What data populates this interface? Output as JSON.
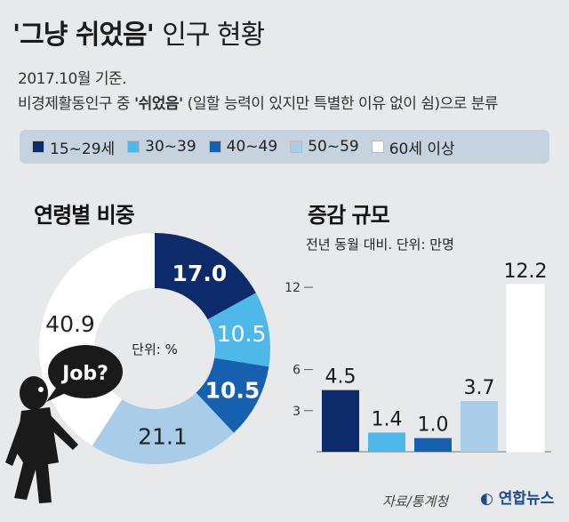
{
  "title": {
    "quoted": "'그냥 쉬었음'",
    "rest": "인구 현황"
  },
  "subtitle_line1": "2017.10월 기준.",
  "subtitle_line2_pre": "비경제활동인구 중 ",
  "subtitle_line2_bold": "'쉬었음'",
  "subtitle_line2_post": " (일할 능력이 있지만 특별한 이유 없이 쉼)으로 분류",
  "legend": [
    {
      "label": "15~29세",
      "color": "#0d2a6b"
    },
    {
      "label": "30~39",
      "color": "#4fb8ea"
    },
    {
      "label": "40~49",
      "color": "#1561b0"
    },
    {
      "label": "50~59",
      "color": "#a9cde8"
    },
    {
      "label": "60세 이상",
      "color": "#ffffff"
    }
  ],
  "donut": {
    "section_title": "연령별 비중",
    "center_label": "단위: %",
    "speech": "Job?"
  },
  "bars": {
    "section_title": "증감 규모",
    "unit_note": "전년 동월 대비. 단위: 만명"
  },
  "source": "자료/통계청",
  "logo": "연합뉴스",
  "chart_data": [
    {
      "type": "pie",
      "title": "연령별 비중",
      "unit": "%",
      "categories": [
        "15~29세",
        "30~39",
        "40~49",
        "50~59",
        "60세 이상"
      ],
      "values": [
        17.0,
        10.5,
        10.5,
        21.1,
        40.9
      ],
      "colors": [
        "#0d2a6b",
        "#4fb8ea",
        "#1561b0",
        "#a9cde8",
        "#ffffff"
      ]
    },
    {
      "type": "bar",
      "title": "증감 규모",
      "ylabel": "전년 동월 대비. 단위: 만명",
      "categories": [
        "15~29세",
        "30~39",
        "40~49",
        "50~59",
        "60세 이상"
      ],
      "values": [
        4.5,
        1.4,
        1.0,
        3.7,
        12.2
      ],
      "colors": [
        "#0d2a6b",
        "#4fb8ea",
        "#1561b0",
        "#a9cde8",
        "#ffffff"
      ],
      "yticks": [
        "3",
        "6",
        "12"
      ],
      "ylim": [
        0,
        13.5
      ]
    }
  ]
}
